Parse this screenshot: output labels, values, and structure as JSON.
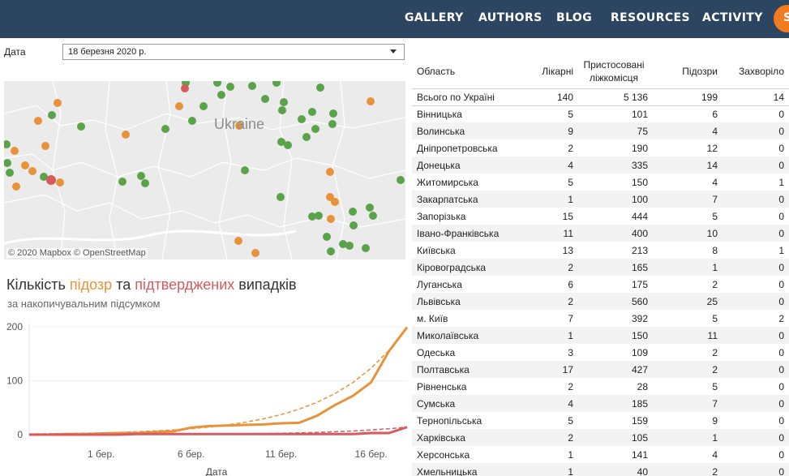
{
  "nav": {
    "items": [
      "GALLERY",
      "AUTHORS",
      "BLOG",
      "RESOURCES",
      "ACTIVITY"
    ],
    "partial_button": "S"
  },
  "filter": {
    "label": "Дата",
    "value": "18 березня 2020 р."
  },
  "map": {
    "country_label": "Ukraine",
    "attribution": "© 2020 Mapbox © OpenStreetMap",
    "colors": {
      "suspected": "#e8923a",
      "no_cases": "#5aa34a",
      "confirmed": "#d65a5e"
    }
  },
  "chart": {
    "title_parts": [
      "Кількість ",
      "підозр",
      " та ",
      "підтверджених",
      " випадків"
    ],
    "subtitle": "за накопичувальним підсумком",
    "x_axis_label": "Дата"
  },
  "chart_data": {
    "type": "line",
    "x_ticks": [
      "1 бер.",
      "6 бер.",
      "11 бер.",
      "16 бер."
    ],
    "y_ticks": [
      0,
      100,
      200
    ],
    "ylim": [
      0,
      200
    ],
    "x": [
      "26 лют.",
      "27 лют.",
      "28 лют.",
      "29 лют.",
      "1 бер.",
      "2 бер.",
      "3 бер.",
      "4 бер.",
      "5 бер.",
      "6 бер.",
      "7 бер.",
      "8 бер.",
      "9 бер.",
      "10 бер.",
      "11 бер.",
      "12 бер.",
      "13 бер.",
      "14 бер.",
      "15 бер.",
      "16 бер.",
      "17 бер.",
      "18 бер."
    ],
    "series": [
      {
        "color": "#e8923a",
        "values": [
          0,
          0,
          1,
          1,
          2,
          3,
          3,
          5,
          6,
          13,
          16,
          17,
          18,
          19,
          21,
          22,
          35,
          55,
          72,
          97,
          155,
          199
        ]
      },
      {
        "color": "#d65a5e",
        "values": [
          0,
          0,
          0,
          0,
          0,
          0,
          1,
          1,
          1,
          1,
          1,
          1,
          1,
          1,
          1,
          1,
          1,
          1,
          1,
          3,
          3,
          14
        ]
      }
    ],
    "trendlines": [
      {
        "color": "#e8923a",
        "style": "dashed"
      },
      {
        "color": "#d65a5e",
        "style": "dashed"
      }
    ]
  },
  "table": {
    "headers": [
      "Область",
      "Лікарні",
      "Пристосовані ліжкомісця",
      "Підозри",
      "Захворіло"
    ],
    "rows": [
      [
        "Всього по Україні",
        "140",
        "5 136",
        "199",
        "14"
      ],
      [
        "Вінницька",
        "5",
        "101",
        "6",
        "0"
      ],
      [
        "Волинська",
        "9",
        "75",
        "4",
        "0"
      ],
      [
        "Дніпропетровська",
        "2",
        "190",
        "12",
        "0"
      ],
      [
        "Донецька",
        "4",
        "335",
        "14",
        "0"
      ],
      [
        "Житомирська",
        "5",
        "150",
        "4",
        "1"
      ],
      [
        "Закарпатська",
        "1",
        "100",
        "7",
        "0"
      ],
      [
        "Запорізька",
        "15",
        "444",
        "5",
        "0"
      ],
      [
        "Івано-Франківська",
        "11",
        "400",
        "10",
        "0"
      ],
      [
        "Київська",
        "13",
        "213",
        "8",
        "1"
      ],
      [
        "Кіровоградська",
        "2",
        "165",
        "1",
        "0"
      ],
      [
        "Луганська",
        "6",
        "175",
        "2",
        "0"
      ],
      [
        "Львівська",
        "2",
        "560",
        "25",
        "0"
      ],
      [
        "м. Київ",
        "7",
        "392",
        "5",
        "2"
      ],
      [
        "Миколаївська",
        "1",
        "150",
        "11",
        "0"
      ],
      [
        "Одеська",
        "3",
        "109",
        "2",
        "0"
      ],
      [
        "Полтавська",
        "17",
        "427",
        "2",
        "0"
      ],
      [
        "Рівненська",
        "2",
        "28",
        "5",
        "0"
      ],
      [
        "Сумська",
        "4",
        "185",
        "7",
        "0"
      ],
      [
        "Тернопільська",
        "5",
        "159",
        "9",
        "0"
      ],
      [
        "Харківська",
        "2",
        "105",
        "1",
        "0"
      ],
      [
        "Херсонська",
        "1",
        "141",
        "4",
        "0"
      ],
      [
        "Хмельницька",
        "1",
        "40",
        "2",
        "0"
      ]
    ]
  }
}
